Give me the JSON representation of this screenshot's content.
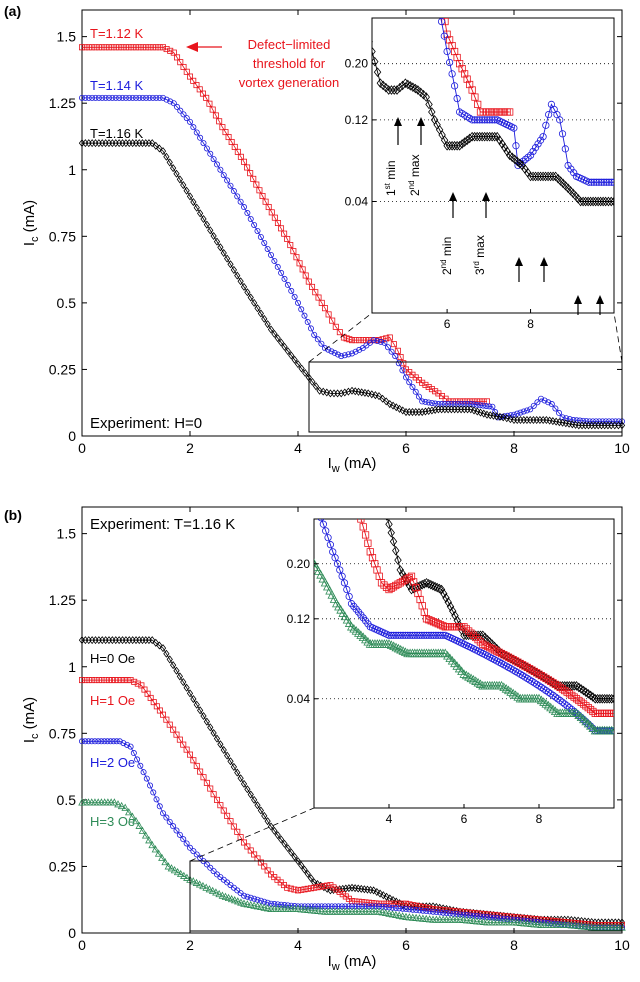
{
  "chart_data": [
    {
      "panel_label": "(a)",
      "type": "scatter",
      "xlabel": "I_w (mA)",
      "ylabel": "I_c (mA)",
      "xlim": [
        0,
        10
      ],
      "ylim": [
        0,
        1.6
      ],
      "xticks": [
        "0",
        "2",
        "4",
        "6",
        "8",
        "10"
      ],
      "yticks": [
        "0",
        "0.25",
        "0.5",
        "0.75",
        "1",
        "1.25",
        "1.5"
      ],
      "annotation_experiment": "Experiment: H=0",
      "annotation_arrow_text": [
        "Defect−limited",
        "threshold for",
        "vortex generation"
      ],
      "series": [
        {
          "name": "T=1.12 K",
          "color": "#e8141c",
          "marker": "square",
          "x": [
            0,
            0.5,
            1.0,
            1.5,
            1.7,
            2.0,
            2.3,
            2.6,
            3.0,
            3.4,
            3.8,
            4.2,
            4.5,
            4.7,
            4.85,
            5.0,
            5.2,
            5.5,
            5.7,
            5.85,
            6.0,
            6.3,
            6.6,
            6.8,
            7.0,
            7.5
          ],
          "y": [
            1.46,
            1.46,
            1.46,
            1.46,
            1.44,
            1.35,
            1.27,
            1.16,
            1.03,
            0.88,
            0.74,
            0.58,
            0.48,
            0.41,
            0.37,
            0.36,
            0.36,
            0.36,
            0.37,
            0.32,
            0.25,
            0.2,
            0.16,
            0.13,
            0.13,
            0.13
          ]
        },
        {
          "name": "T=1.14 K",
          "color": "#1c1cdc",
          "marker": "circle",
          "x": [
            0,
            0.5,
            1.0,
            1.5,
            1.7,
            2.0,
            2.5,
            3.0,
            3.5,
            4.0,
            4.3,
            4.5,
            4.8,
            5.0,
            5.2,
            5.4,
            5.6,
            5.8,
            6.0,
            6.3,
            6.6,
            6.9,
            7.2,
            7.6,
            7.7,
            8.0,
            8.3,
            8.5,
            8.7,
            8.9,
            9.1,
            9.4,
            9.7,
            10.0
          ],
          "y": [
            1.27,
            1.27,
            1.27,
            1.27,
            1.25,
            1.18,
            1.02,
            0.86,
            0.68,
            0.5,
            0.38,
            0.33,
            0.3,
            0.31,
            0.33,
            0.36,
            0.35,
            0.3,
            0.22,
            0.13,
            0.12,
            0.12,
            0.12,
            0.11,
            0.07,
            0.08,
            0.1,
            0.14,
            0.12,
            0.07,
            0.06,
            0.055,
            0.055,
            0.055
          ]
        },
        {
          "name": "T=1.16 K",
          "color": "#000000",
          "marker": "diamond",
          "x": [
            0,
            0.5,
            1.0,
            1.3,
            1.5,
            2.0,
            2.5,
            3.0,
            3.5,
            4.0,
            4.2,
            4.4,
            4.6,
            4.8,
            5.0,
            5.3,
            5.5,
            5.7,
            6.0,
            6.3,
            6.6,
            6.9,
            7.2,
            7.5,
            7.8,
            8.0,
            8.3,
            8.6,
            8.9,
            9.2,
            9.5,
            9.8,
            10.0
          ],
          "y": [
            1.1,
            1.1,
            1.1,
            1.1,
            1.07,
            0.9,
            0.73,
            0.56,
            0.4,
            0.27,
            0.22,
            0.17,
            0.16,
            0.16,
            0.17,
            0.16,
            0.15,
            0.12,
            0.09,
            0.09,
            0.1,
            0.1,
            0.1,
            0.08,
            0.07,
            0.06,
            0.06,
            0.06,
            0.05,
            0.04,
            0.04,
            0.04,
            0.04
          ]
        }
      ],
      "inset": {
        "xlim": [
          4.2,
          10.0
        ],
        "ylim": [
          0.0,
          0.28
        ],
        "xticks": [
          "6",
          "8"
        ],
        "yticks": [
          "0.04",
          "0.12",
          "0.20"
        ],
        "arrow_labels": [
          "1st min",
          "2nd max",
          "2nd min",
          "3rd max"
        ]
      }
    },
    {
      "panel_label": "(b)",
      "type": "scatter",
      "xlabel": "I_w (mA)",
      "ylabel": "I_c (mA)",
      "xlim": [
        0,
        10
      ],
      "ylim": [
        0,
        1.6
      ],
      "xticks": [
        "0",
        "2",
        "4",
        "6",
        "8",
        "10"
      ],
      "yticks": [
        "0",
        "0.25",
        "0.5",
        "0.75",
        "1",
        "1.25",
        "1.5"
      ],
      "annotation_experiment": "Experiment: T=1.16 K",
      "series": [
        {
          "name": "H=0 Oe",
          "color": "#000000",
          "marker": "diamond",
          "x": [
            0,
            0.5,
            1.0,
            1.3,
            1.5,
            2.0,
            2.5,
            3.0,
            3.5,
            4.0,
            4.3,
            4.6,
            5.0,
            5.4,
            5.7,
            6.0,
            6.5,
            7.0,
            7.5,
            8.0,
            8.5,
            9.0,
            9.5,
            10.0
          ],
          "y": [
            1.1,
            1.1,
            1.1,
            1.1,
            1.07,
            0.9,
            0.73,
            0.56,
            0.4,
            0.27,
            0.19,
            0.16,
            0.17,
            0.16,
            0.13,
            0.1,
            0.1,
            0.08,
            0.07,
            0.06,
            0.05,
            0.05,
            0.04,
            0.04
          ]
        },
        {
          "name": "H=1 Oe",
          "color": "#e8141c",
          "marker": "square",
          "x": [
            0,
            0.5,
            0.9,
            1.1,
            1.5,
            2.0,
            2.5,
            3.0,
            3.5,
            3.8,
            4.0,
            4.3,
            4.6,
            5.0,
            5.5,
            6.0,
            6.5,
            7.0,
            7.5,
            8.0,
            8.5,
            9.0,
            9.5,
            10.0
          ],
          "y": [
            0.95,
            0.95,
            0.95,
            0.93,
            0.82,
            0.67,
            0.5,
            0.34,
            0.22,
            0.17,
            0.16,
            0.17,
            0.18,
            0.12,
            0.11,
            0.11,
            0.09,
            0.08,
            0.07,
            0.06,
            0.05,
            0.04,
            0.03,
            0.03
          ]
        },
        {
          "name": "H=2 Oe",
          "color": "#1c1cdc",
          "marker": "circle",
          "x": [
            0,
            0.3,
            0.7,
            0.9,
            1.2,
            1.5,
            2.0,
            2.5,
            3.0,
            3.5,
            4.0,
            4.5,
            5.0,
            5.5,
            6.0,
            6.5,
            7.0,
            7.5,
            8.0,
            8.5,
            9.0,
            9.5,
            10.0
          ],
          "y": [
            0.72,
            0.72,
            0.72,
            0.7,
            0.58,
            0.45,
            0.32,
            0.22,
            0.14,
            0.11,
            0.1,
            0.1,
            0.1,
            0.1,
            0.09,
            0.08,
            0.07,
            0.06,
            0.05,
            0.04,
            0.03,
            0.02,
            0.02
          ]
        },
        {
          "name": "H=3 Oe",
          "color": "#2e8b57",
          "marker": "triangle",
          "x": [
            0,
            0.3,
            0.6,
            0.8,
            1.0,
            1.3,
            1.6,
            2.0,
            2.3,
            2.6,
            3.0,
            3.5,
            4.0,
            4.5,
            5.0,
            5.5,
            6.0,
            6.5,
            7.0,
            7.5,
            8.0,
            8.5,
            9.0,
            9.5,
            10.0
          ],
          "y": [
            0.49,
            0.49,
            0.49,
            0.47,
            0.42,
            0.33,
            0.25,
            0.2,
            0.17,
            0.14,
            0.11,
            0.09,
            0.09,
            0.08,
            0.08,
            0.08,
            0.06,
            0.05,
            0.05,
            0.04,
            0.04,
            0.03,
            0.03,
            0.02,
            0.02
          ]
        }
      ],
      "inset": {
        "xlim": [
          2.0,
          10.0
        ],
        "ylim": [
          0.0,
          0.28
        ],
        "xticks": [
          "4",
          "6",
          "8"
        ],
        "yticks": [
          "0.04",
          "0.12",
          "0.20"
        ]
      }
    }
  ]
}
